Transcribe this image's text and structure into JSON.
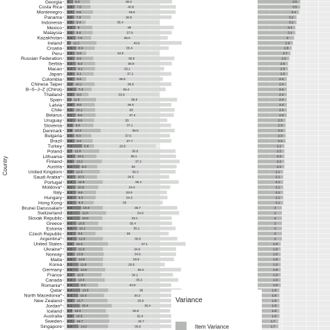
{
  "chart_data": {
    "type": "bar",
    "ylabel": "Country",
    "legend": {
      "title": "Variance",
      "items": [
        {
          "label": "Item Variance",
          "color": "#b6b8b6"
        }
      ]
    },
    "colors": {
      "dark": "#7d7f7d",
      "mid": "#b6b8b6",
      "light": "#d7d9d7",
      "panel": "#ebebeb",
      "grid": "#ffffff",
      "label_box": "#7d7f7d"
    },
    "countries": [
      {
        "name": "Georgia",
        "a": "3",
        "b": "8.2",
        "c": "39.2",
        "r": "3.5"
      },
      {
        "name": "Costa Rica",
        "a": "3.8",
        "b": "7.6",
        "c": "40.8",
        "r": "3.5"
      },
      {
        "name": "Montenegro",
        "a": "3.7",
        "b": "8.8",
        "c": "39.6",
        "r": "3.4"
      },
      {
        "name": "Panama",
        "a": "3.6",
        "b": "7.8",
        "c": "38.8",
        "r": "3.2"
      },
      {
        "name": "Indonesia",
        "a": "3.6",
        "b": "5.4",
        "c": "35.4",
        "r": "3.2"
      },
      {
        "name": "Mexico",
        "a": "4.2",
        "b": "8",
        "c": "39",
        "r": "3.1"
      },
      {
        "name": "Malaysia",
        "a": "3.6",
        "b": "8.8",
        "c": "37.8",
        "r": "3.1"
      },
      {
        "name": "Kazakhstan",
        "a": "4.2",
        "b": "7.5",
        "c": "36.6",
        "r": "3"
      },
      {
        "name": "Ireland",
        "a": "2",
        "b": "12.2",
        "c": "40.8",
        "r": "2.9"
      },
      {
        "name": "Croatia",
        "a": "4.5",
        "b": "8.9",
        "c": "35.4",
        "r": "2.8"
      },
      {
        "name": "Peru",
        "a": "3.8",
        "b": "5.6",
        "c": "34.9",
        "r": "2.7"
      },
      {
        "name": "Russian Federation",
        "a": "3.8",
        "b": "8.9",
        "c": "38.8",
        "r": "2.6"
      },
      {
        "name": "Serbia",
        "a": "4.2",
        "b": "9.3",
        "c": "36.8",
        "r": "2.5"
      },
      {
        "name": "Macao",
        "a": "4.4",
        "b": "9.1",
        "c": "33.1",
        "r": "2.5"
      },
      {
        "name": "Japan",
        "a": "3.8",
        "b": "9.1",
        "c": "37.2",
        "r": "2.5"
      },
      {
        "name": "Colombia",
        "a": "3.8",
        "b": "5.6",
        "c": "36.6",
        "r": "2.4"
      },
      {
        "name": "Chinese Taipei",
        "a": "3.2",
        "b": "10.1",
        "c": "36.8",
        "r": "2.4"
      },
      {
        "name": "B–S–J–Z (China)",
        "a": "4.6",
        "b": "7.3",
        "c": "35.4",
        "r": "2.4"
      },
      {
        "name": "Thailand",
        "a": "3.8",
        "b": "6.6",
        "c": "33.9",
        "r": "2.4"
      },
      {
        "name": "Spain",
        "a": "2.2",
        "b": "11.8",
        "c": "38.8",
        "r": "2.4"
      },
      {
        "name": "Latvia",
        "a": "3.8",
        "b": "9.6",
        "c": "36.6",
        "r": "2.4"
      },
      {
        "name": "Chile",
        "a": "3.5",
        "b": "10.1",
        "c": "38",
        "r": "2.4"
      },
      {
        "name": "Belarus",
        "a": "4.2",
        "b": "9.6",
        "c": "37.4",
        "r": "2.4"
      },
      {
        "name": "Uruguay",
        "a": "4.2",
        "b": "8.9",
        "c": "35",
        "r": "2.3"
      },
      {
        "name": "Slovenia",
        "a": "3.2",
        "b": "9.6",
        "c": "37.1",
        "r": "2.3"
      },
      {
        "name": "Denmark",
        "a": "2.9",
        "b": "13.3",
        "c": "35.5",
        "r": "2.3"
      },
      {
        "name": "Bulgaria",
        "a": "3.5",
        "b": "8.3",
        "c": "37.6",
        "r": "2.3"
      },
      {
        "name": "Brazil",
        "a": "3.8",
        "b": "8.6",
        "c": "37.7",
        "r": "2.3"
      },
      {
        "name": "Turkey",
        "a": "7.3",
        "b": "5.8",
        "c": "29.5",
        "r": "2.2"
      },
      {
        "name": "Poland",
        "a": "2.7",
        "b": "12.8",
        "c": "36.6",
        "r": "2.2"
      },
      {
        "name": "Lithuania",
        "a": "4.1",
        "b": "10.1",
        "c": "38.1",
        "r": "2.2"
      },
      {
        "name": "Finland",
        "a": "3.6",
        "b": "13.2",
        "c": "37.2",
        "r": "2.2"
      },
      {
        "name": "Austria",
        "a": "6.2",
        "b": "8.4",
        "c": "38",
        "r": "2.2"
      },
      {
        "name": "United Kingdom",
        "a": "3.5",
        "b": "12.3",
        "c": "36.3",
        "r": "2.1"
      },
      {
        "name": "Saudi Arabia*",
        "a": "4.2",
        "b": "10.3",
        "c": "34.5",
        "r": "2.1"
      },
      {
        "name": "Portugal",
        "a": "4.4",
        "b": "12.8",
        "c": "36.4",
        "r": "2.1"
      },
      {
        "name": "Moldova*",
        "a": "4.2",
        "b": "10.9",
        "c": "34.4",
        "r": "2.1"
      },
      {
        "name": "Italy",
        "a": "4.4",
        "b": "9.6",
        "c": "33.9",
        "r": "2.1"
      },
      {
        "name": "Hungary",
        "a": "4.6",
        "b": "9.3",
        "c": "34.3",
        "r": "2.1"
      },
      {
        "name": "Hong Kong",
        "a": "4.6",
        "b": "8.3",
        "c": "33",
        "r": "2.1"
      },
      {
        "name": "Brunei Darussalam",
        "a": "6.8",
        "b": "10.4",
        "c": "35.7",
        "r": "2"
      },
      {
        "name": "Switzerland",
        "a": "6.3",
        "b": "12.6",
        "c": "34.9",
        "r": "2"
      },
      {
        "name": "Slovak Republic",
        "a": "6.3",
        "b": "10.8",
        "c": "33.1",
        "r": "2"
      },
      {
        "name": "Greece",
        "a": "4.5",
        "b": "10.5",
        "c": "35.4",
        "r": "2"
      },
      {
        "name": "Estonia",
        "a": "4.9",
        "b": "12.1",
        "c": "35.1",
        "r": "2"
      },
      {
        "name": "Czech Republic",
        "a": "4.4",
        "b": "9.4",
        "c": "35",
        "r": "2"
      },
      {
        "name": "Argentina*",
        "a": "4.8",
        "b": "12.5",
        "c": "35.6",
        "r": "2"
      },
      {
        "name": "United States",
        "a": "3.5",
        "b": "16.3",
        "c": "37.1",
        "r": "1.9"
      },
      {
        "name": "Ukraine*",
        "a": "4.5",
        "b": "12.9",
        "c": "34.9",
        "r": "1.9"
      },
      {
        "name": "Norway",
        "a": "3.8",
        "b": "13.9",
        "c": "34.6",
        "r": "1.9"
      },
      {
        "name": "Malta",
        "a": "4.6",
        "b": "12.8",
        "c": "33.9",
        "r": "1.9"
      },
      {
        "name": "Korea",
        "a": "5.5",
        "b": "11.8",
        "c": "29.6",
        "r": "1.9"
      },
      {
        "name": "Germany",
        "a": "5.6",
        "b": "12.8",
        "c": "36.3",
        "r": "1.9"
      },
      {
        "name": "France",
        "a": "3.9",
        "b": "12.8",
        "c": "34.1",
        "r": "1.9"
      },
      {
        "name": "Canada",
        "a": "4.4",
        "b": "13.8",
        "c": "35.2",
        "r": "1.9"
      },
      {
        "name": "Romania*",
        "a": "5.8",
        "b": "9.3",
        "c": "34.9",
        "r": "1.9"
      },
      {
        "name": "Qatar",
        "a": "6.4",
        "b": "13.5",
        "c": "35",
        "r": "1.8"
      },
      {
        "name": "North Macedonia*",
        "a": "5.4",
        "b": "12.4",
        "c": "34.2",
        "r": "1.8"
      },
      {
        "name": "New Zealand",
        "a": "3.8",
        "b": "15.7",
        "c": "33.9",
        "r": "1.8"
      },
      {
        "name": "Jordan*",
        "a": "6.2",
        "b": "15.4",
        "c": "36.4",
        "r": "1.8"
      },
      {
        "name": "Iceland",
        "a": "2.7",
        "b": "16.0",
        "c": "30.8",
        "r": "1.8"
      },
      {
        "name": "Australia",
        "a": "3.5",
        "b": "16.5",
        "c": "32.4",
        "r": "1.8"
      },
      {
        "name": "Sweden",
        "a": "3.7",
        "b": "16.7",
        "c": "32.7",
        "r": "1.7"
      },
      {
        "name": "Singapore",
        "a": "5.6",
        "b": "14.2",
        "c": "30.6",
        "r": "1.7"
      }
    ]
  }
}
